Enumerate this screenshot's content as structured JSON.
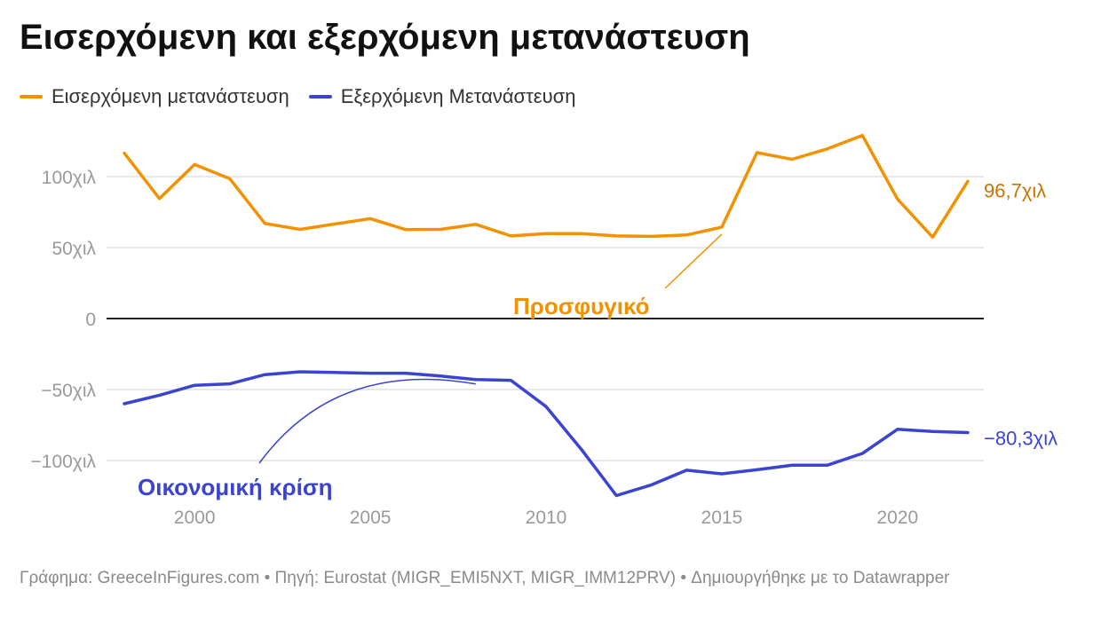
{
  "header": {
    "title": "Εισερχόμενη και εξερχόμενη μετανάστευση"
  },
  "footer": {
    "text": "Γράφημα: GreeceInFigures.com • Πηγή: Eurostat (MIGR_EMI5NXT, MIGR_IMM12PRV) • Δημιουργήθηκε με το Datawrapper"
  },
  "colors": {
    "immigration": "#f39200",
    "emigration": "#3b44d0",
    "immigration_label": "#c77400",
    "gridline": "#e2e2e2",
    "zero_line": "#222222"
  },
  "chart_data": {
    "type": "line",
    "title": "Εισερχόμενη και εξερχόμενη μετανάστευση",
    "legend_position": "top-left",
    "grid": true,
    "x": [
      1998,
      1999,
      2000,
      2001,
      2002,
      2003,
      2004,
      2005,
      2006,
      2007,
      2008,
      2009,
      2010,
      2011,
      2012,
      2013,
      2014,
      2015,
      2016,
      2017,
      2018,
      2019,
      2020,
      2021,
      2022
    ],
    "xlim": [
      1998,
      2022
    ],
    "x_ticks": [
      2000,
      2005,
      2010,
      2015,
      2020
    ],
    "x_tick_labels": [
      "2000",
      "2005",
      "2010",
      "2015",
      "2020"
    ],
    "ylim": [
      -150000,
      150000
    ],
    "y_ticks": [
      100000,
      50000,
      0,
      -50000,
      -100000
    ],
    "y_tick_labels": [
      "100χιλ",
      "50χιλ",
      "0",
      "−50χιλ",
      "−100χιλ"
    ],
    "series": [
      {
        "name": "Εισερχόμενη μετανάστευση",
        "color": "#f39200",
        "values": [
          116500,
          84500,
          108500,
          98500,
          67000,
          62800,
          66600,
          70400,
          62700,
          62800,
          66400,
          58200,
          59900,
          59800,
          58200,
          57900,
          58900,
          64400,
          116900,
          112200,
          119500,
          129000,
          84200,
          57300,
          96700
        ],
        "end_label": "96,7χιλ"
      },
      {
        "name": "Εξερχόμενη Μετανάστευση",
        "color": "#3b44d0",
        "values": [
          -60000,
          -54000,
          -47000,
          -46000,
          -39500,
          -37500,
          -38000,
          -38500,
          -38500,
          -40500,
          -43000,
          -43500,
          -62000,
          -92000,
          -124700,
          -117100,
          -106800,
          -109400,
          -106500,
          -103300,
          -103300,
          -95000,
          -78000,
          -79500,
          -80300
        ],
        "end_label": "−80,3χιλ"
      }
    ],
    "annotations": [
      {
        "text": "Προσφυγικό",
        "series": 0,
        "target_x": 2015
      },
      {
        "text": "Οικονομική κρίση",
        "series": 1,
        "target_x": 2008
      }
    ]
  }
}
